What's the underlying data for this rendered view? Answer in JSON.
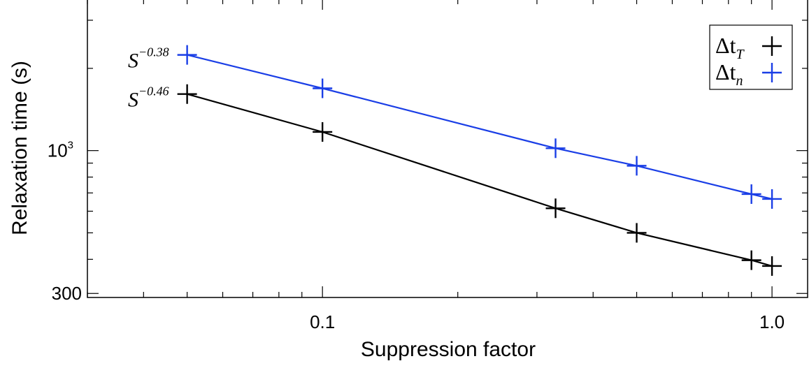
{
  "chart_data": {
    "type": "line",
    "x_scale": "log",
    "y_scale": "log",
    "xlabel": "Suppression factor",
    "ylabel": "Relaxation time (s)",
    "xlim": [
      0.03,
      1.2
    ],
    "ylim": [
      290,
      3600
    ],
    "x_ticks": [
      {
        "value": 0.1,
        "label": "0.1"
      },
      {
        "value": 1.0,
        "label": "1.0"
      }
    ],
    "y_ticks": [
      {
        "value": 300,
        "label": "300",
        "exp": ""
      },
      {
        "value": 1000,
        "label": "10",
        "exp": "3"
      }
    ],
    "grid": false,
    "legend_position": "top-right",
    "series": [
      {
        "name": "Δt_T",
        "symbol": "Δt",
        "subscript": "T",
        "color": "#000000",
        "marker": "plus",
        "x": [
          0.05,
          0.1,
          0.33,
          0.5,
          0.9,
          1.0
        ],
        "y": [
          1610,
          1170,
          615,
          500,
          397,
          378
        ],
        "fit_exponent": -0.46
      },
      {
        "name": "Δt_n",
        "symbol": "Δt",
        "subscript": "n",
        "color": "#1a3ee6",
        "marker": "plus",
        "x": [
          0.05,
          0.1,
          0.33,
          0.5,
          0.9,
          1.0
        ],
        "y": [
          2240,
          1690,
          1020,
          880,
          693,
          665
        ],
        "fit_exponent": -0.38
      }
    ],
    "annotations": [
      {
        "base": "S",
        "exp": "−0.38",
        "series": 1
      },
      {
        "base": "S",
        "exp": "−0.46",
        "series": 0
      }
    ]
  }
}
